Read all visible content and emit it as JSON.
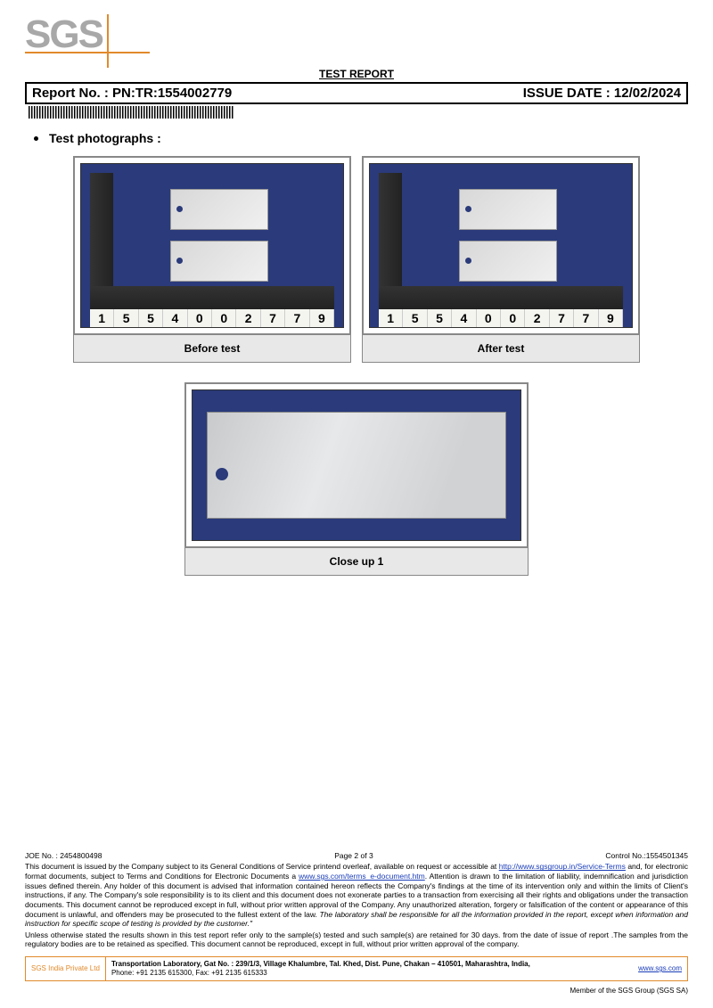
{
  "doc": {
    "title": "TEST REPORT",
    "report_label": "Report No.  : PN:TR:1554002779",
    "issue_label": "ISSUE DATE : 12/02/2024",
    "section": "Test photographs :",
    "sample_digits": [
      "1",
      "5",
      "5",
      "4",
      "0",
      "0",
      "2",
      "7",
      "7",
      "9"
    ]
  },
  "photos": {
    "before": "Before test",
    "after": "After test",
    "closeup": "Close up 1"
  },
  "footer": {
    "joe": "JOE No. : 2454800498",
    "page": "Page 2 of 3",
    "control": "Control No.:1554501345",
    "text1": "This document is issued by the Company subject to its General Conditions of Service printend overleaf, available on request or accessible at ",
    "link1": "http://www.sgsgroup.in/Service-Terms",
    "text2": " and, for electronic format documents, subject to Terms and Conditions for Electronic Documents a  ",
    "link2": "www.sgs.com/terms_e-document.htm",
    "text3": ".  Attention is drawn to the limitation of liability, indemnification and jurisdiction  issues defined therein.  Any holder of this document is advised that information contained hereon reflects the Company's  findings at the time of its intervention only and within the limits of Client's instructions, if any.  The Company's sole responsibility is to its client and this document does not exonerate parties to a transaction from exercising all their rights and obligations under the transaction documents. This document cannot be reproduced except in full, without prior written approval of the Company. Any unauthorized alteration, forgery or falsification of the content or appearance of this document is unlawful, and offenders may be prosecuted to the fullest extent of the law. ",
    "italic": "The laboratory shall be responsible for all the information provided in the report, except when information and instruction for specific scope of testing is provided by the customer.\"",
    "text4": "Unless otherwise stated the results shown in this test report refer only to the sample(s) tested and such sample(s) are retained for 30 days. from the date of  issue of report .The samples from the regulatory bodies are to be retained as specified. This document cannot be reproduced, except in full, without prior written approval of the company.",
    "company": "SGS India Private Ltd",
    "lab_line1": "Transportation Laboratory, Gat No. : 239/1/3, Village Khalumbre, Tal. Khed, Dist. Pune, Chakan – 410501, Maharashtra, India,",
    "lab_line2": "Phone: +91 2135 615300, Fax:  +91 2135 615333",
    "site": "www.sgs.com",
    "member": "Member of the SGS Group (SGS SA)"
  },
  "colors": {
    "accent": "#e28a2b",
    "photo_bg": "#2a3a7a",
    "caption_bg": "#e8e8e8"
  }
}
